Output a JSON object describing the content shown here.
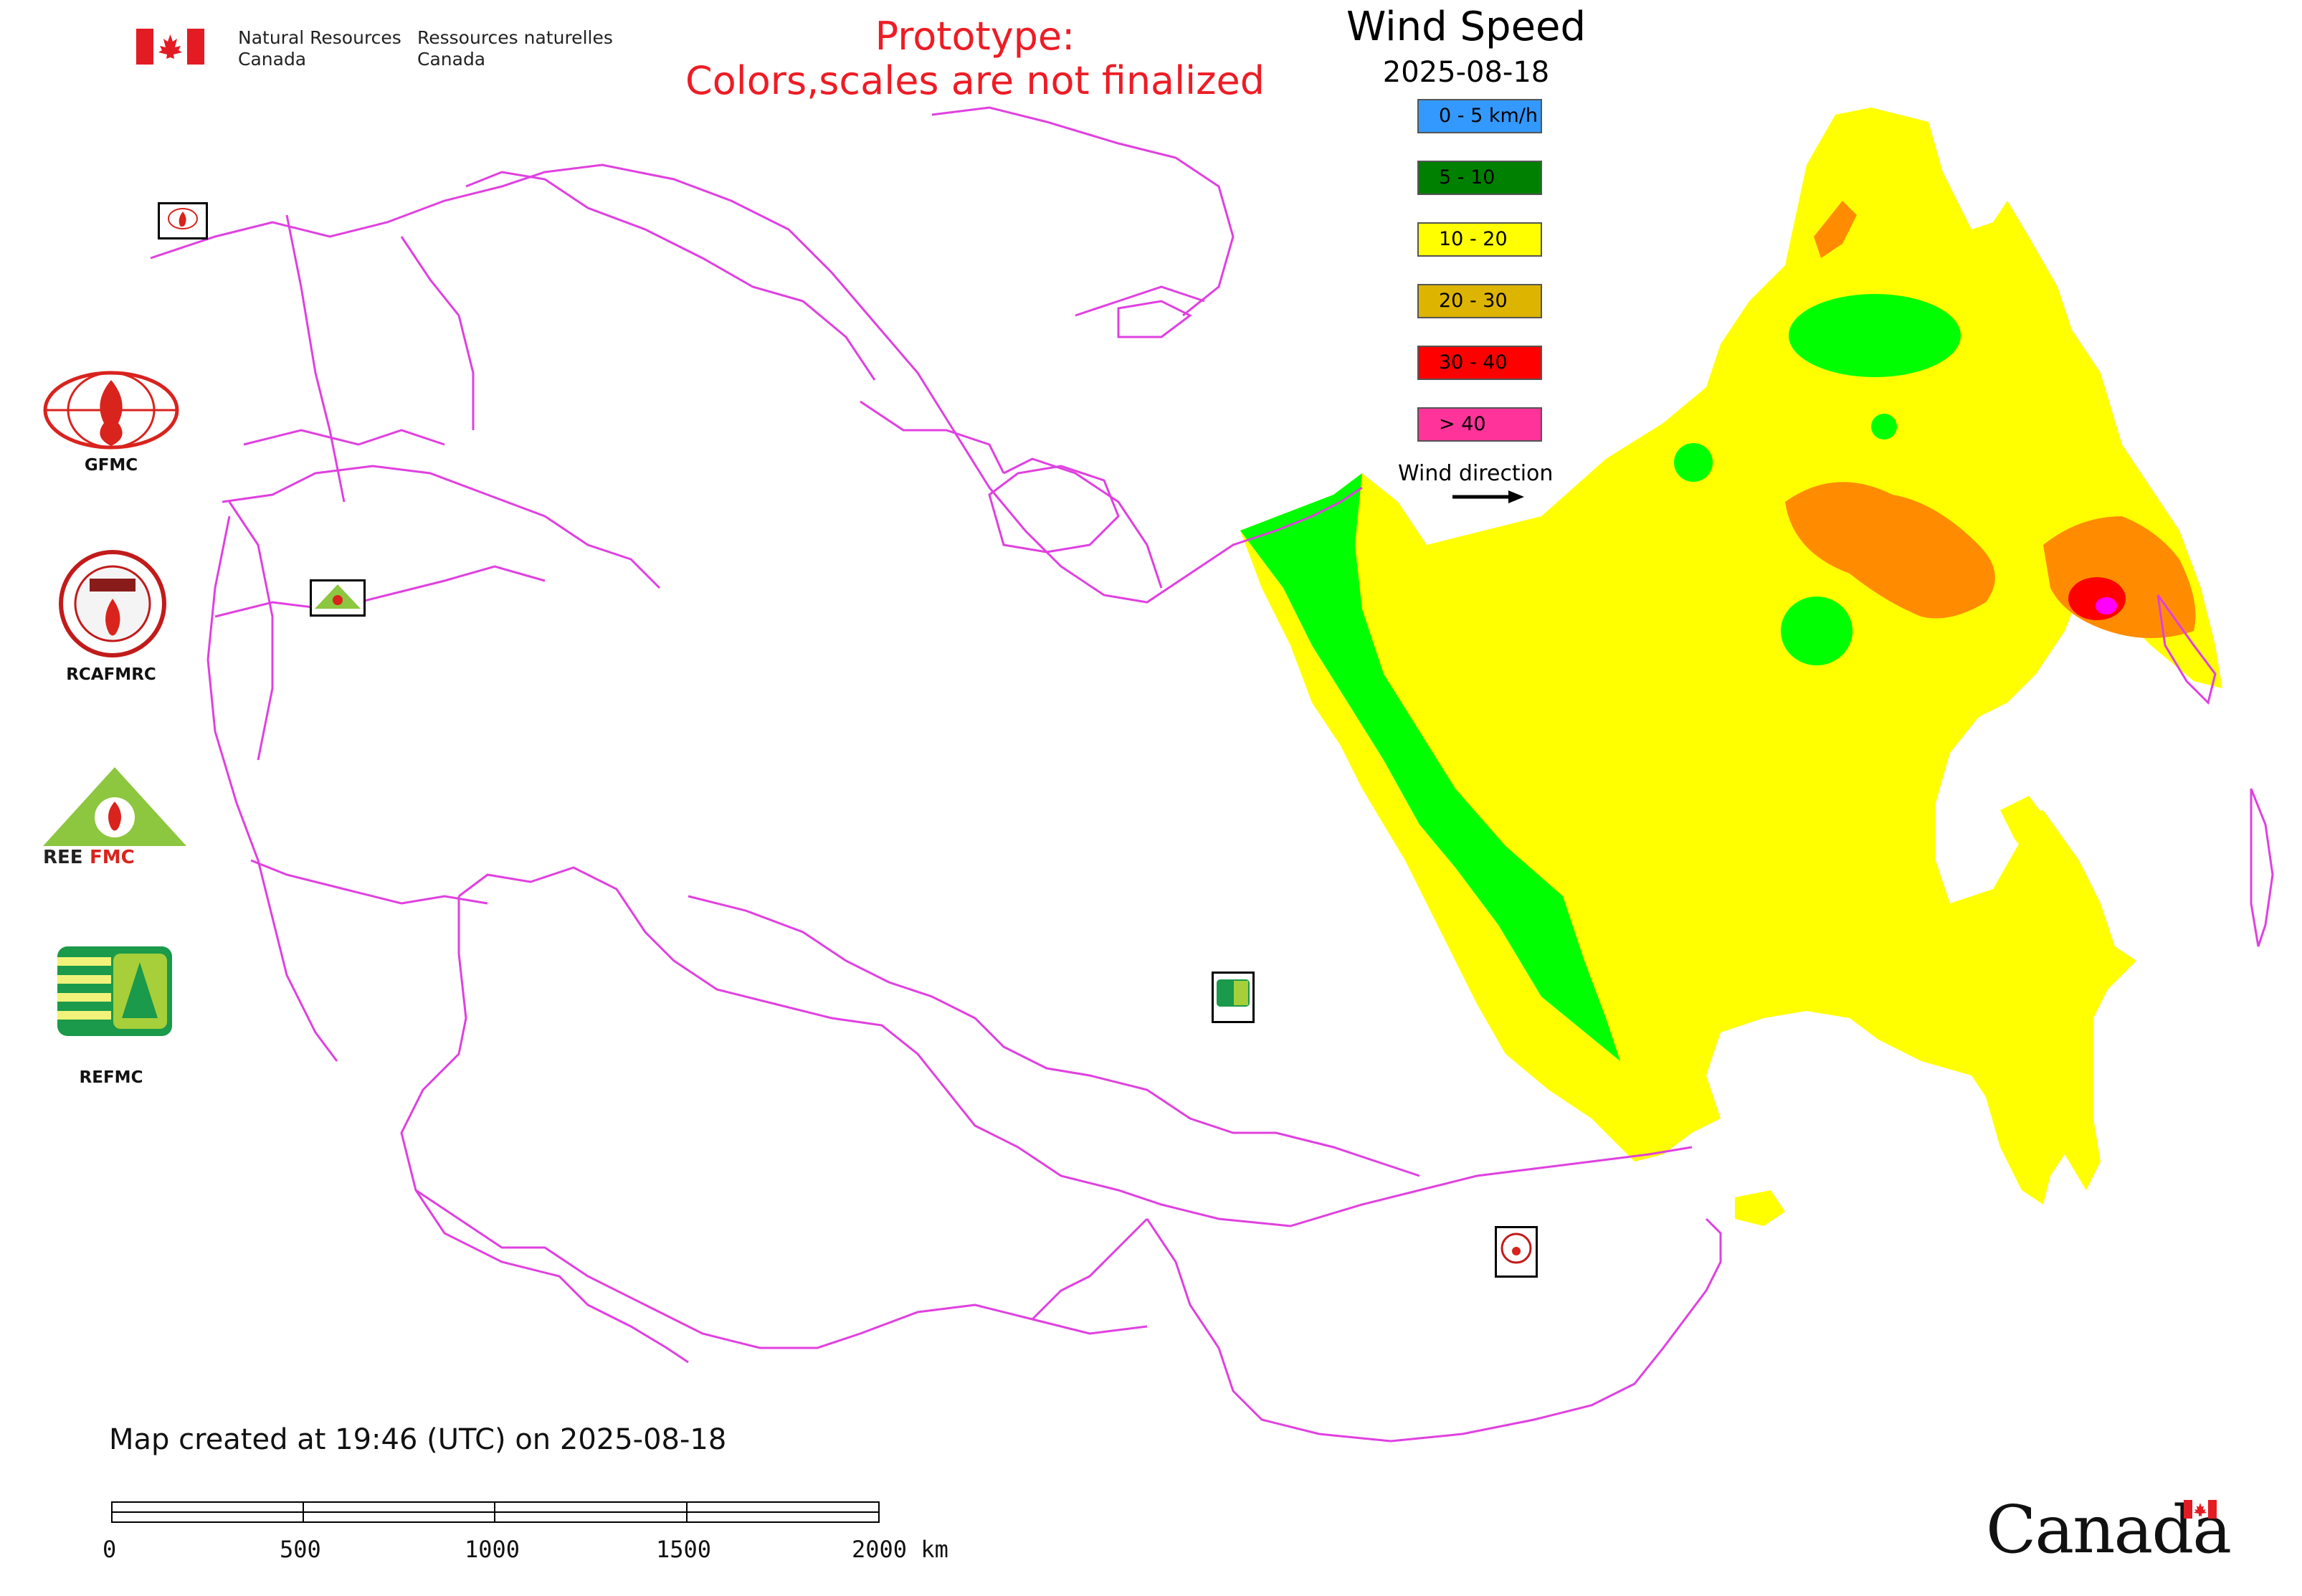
{
  "header": {
    "dept_en_line1": "Natural Resources",
    "dept_en_line2": "Canada",
    "dept_fr_line1": "Ressources naturelles",
    "dept_fr_line2": "Canada",
    "notice_line1": "Prototype:",
    "notice_line2": "Colors,scales are not finalized"
  },
  "legend": {
    "title": "Wind Speed",
    "date": "2025-08-18",
    "classes": [
      {
        "label": "0 - 5 km/h",
        "color": "#3399ff"
      },
      {
        "label": "5 - 10",
        "color": "#008000"
      },
      {
        "label": "10 - 20",
        "color": "#ffff00"
      },
      {
        "label": "20 - 30",
        "color": "#ddb400"
      },
      {
        "label": "30 - 40",
        "color": "#ff0000"
      },
      {
        "label": "> 40",
        "color": "#ff3399"
      }
    ],
    "wind_direction_label": "Wind direction"
  },
  "logos": [
    {
      "label": "GFMC"
    },
    {
      "label": "RCAFMRC"
    },
    {
      "label": "REEFMC"
    },
    {
      "label": "REFMC"
    }
  ],
  "map_colors": {
    "border": "#e040e0",
    "yellow": "#ffff00",
    "green": "#00ff00",
    "orange": "#ff8c00",
    "red": "#ff0000",
    "pink": "#ff00ff"
  },
  "footer": {
    "created": "Map created at 19:46 (UTC) on 2025-08-18",
    "scale_ticks": [
      "0",
      "500",
      "1000",
      "1500",
      "2000 km"
    ],
    "wordmark": "Canada"
  }
}
